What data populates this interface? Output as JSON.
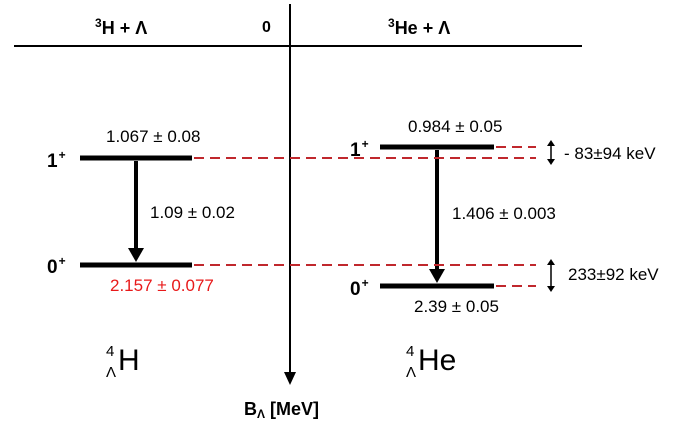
{
  "header": {
    "left_sup": "3",
    "left_text": "H + Λ",
    "center": "0",
    "right_sup": "3",
    "right_text": "He + Λ"
  },
  "hypertriton": {
    "level_1_sup": "1",
    "level_1_parity": "+",
    "level_1_value": "1.067 ± 0.08",
    "transition": "1.09 ± 0.02",
    "level_0_sup": "0",
    "level_0_parity": "+",
    "level_0_value": "2.157 ± 0.077",
    "level_0_value_color": "#e8191a",
    "nucleus_mass": "4",
    "nucleus_sub": "Λ",
    "nucleus_symbol": "H"
  },
  "helium": {
    "level_1_sup": "1",
    "level_1_parity": "+",
    "level_1_value": "0.984 ± 0.05",
    "transition": "1.406 ± 0.003",
    "level_0_sup": "0",
    "level_0_parity": "+",
    "level_0_value": "2.39 ± 0.05",
    "nucleus_mass": "4",
    "nucleus_sub": "Λ",
    "nucleus_symbol": "He"
  },
  "splittings": {
    "upper": "- 83±94 keV",
    "lower": "233±92 keV"
  },
  "axis": {
    "label": "B",
    "label_sub": "Λ",
    "unit": " [MeV]"
  },
  "colors": {
    "dashed_line": "#c0282d",
    "level_line": "#000000"
  }
}
